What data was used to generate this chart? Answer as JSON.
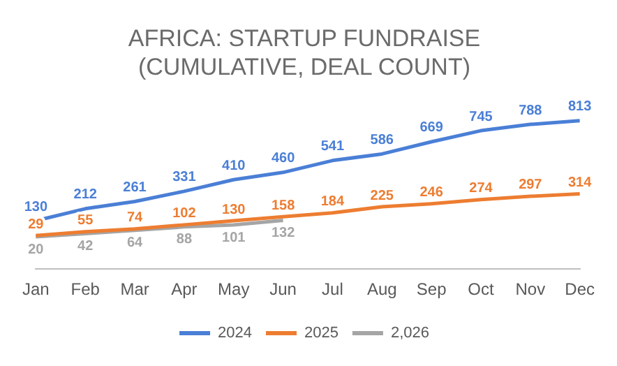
{
  "chart_data": {
    "type": "line",
    "title": "AFRICA: STARTUP FUNDRAISE\n(CUMULATIVE, DEAL COUNT)",
    "categories": [
      "Jan",
      "Feb",
      "Mar",
      "Apr",
      "May",
      "Jun",
      "Jul",
      "Aug",
      "Sep",
      "Oct",
      "Nov",
      "Dec"
    ],
    "series": [
      {
        "name": "2024",
        "color": "#4a7fd6",
        "values": [
          130,
          212,
          261,
          331,
          410,
          460,
          541,
          586,
          669,
          745,
          788,
          813
        ]
      },
      {
        "name": "2025",
        "color": "#ed7d31",
        "values": [
          29,
          55,
          74,
          102,
          130,
          158,
          184,
          225,
          246,
          274,
          297,
          314
        ]
      },
      {
        "name": "2,026",
        "color": "#a5a5a5",
        "values": [
          20,
          42,
          64,
          88,
          101,
          132,
          null,
          null,
          null,
          null,
          null,
          null
        ]
      }
    ],
    "data_labels": true,
    "legend": "bottom",
    "tick_labels": "x",
    "grid": false,
    "marker": "none",
    "line_style": "solid"
  }
}
